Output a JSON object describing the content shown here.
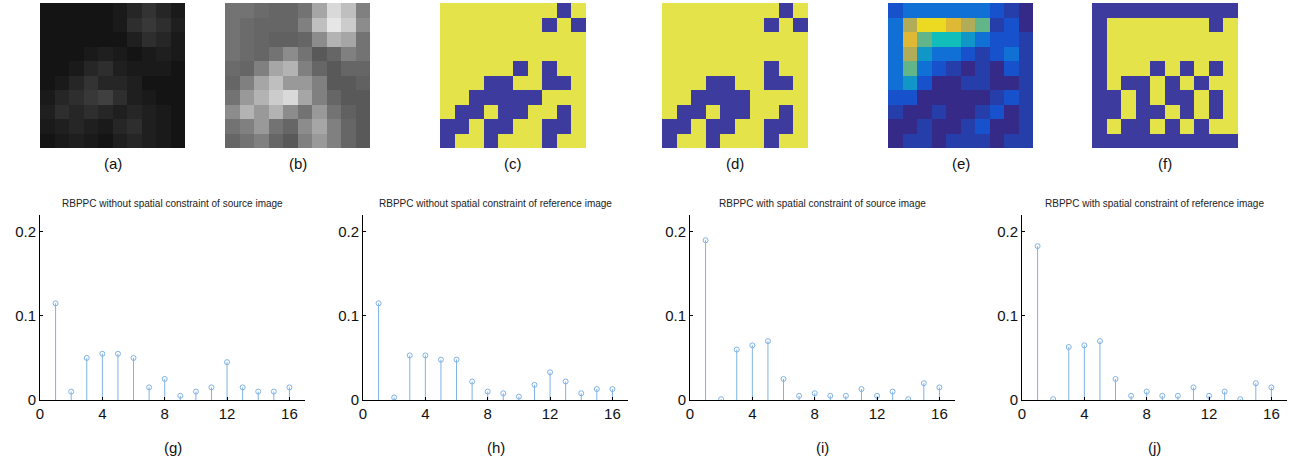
{
  "chart_data": [
    {
      "type": "heatmap",
      "label": "(a)",
      "color": "gray",
      "tick_labels": false,
      "zlim": [
        0,
        1
      ],
      "cells": [
        [
          0.08,
          0.08,
          0.08,
          0.08,
          0.08,
          0.1,
          0.15,
          0.2,
          0.15,
          0.1
        ],
        [
          0.08,
          0.08,
          0.08,
          0.08,
          0.08,
          0.1,
          0.18,
          0.22,
          0.18,
          0.12
        ],
        [
          0.08,
          0.08,
          0.08,
          0.08,
          0.08,
          0.08,
          0.12,
          0.18,
          0.15,
          0.1
        ],
        [
          0.08,
          0.08,
          0.08,
          0.1,
          0.12,
          0.1,
          0.08,
          0.1,
          0.12,
          0.1
        ],
        [
          0.08,
          0.08,
          0.1,
          0.15,
          0.18,
          0.12,
          0.1,
          0.1,
          0.1,
          0.08
        ],
        [
          0.08,
          0.1,
          0.15,
          0.2,
          0.15,
          0.15,
          0.12,
          0.08,
          0.08,
          0.08
        ],
        [
          0.1,
          0.15,
          0.18,
          0.22,
          0.25,
          0.18,
          0.12,
          0.1,
          0.08,
          0.08
        ],
        [
          0.12,
          0.18,
          0.15,
          0.18,
          0.15,
          0.12,
          0.15,
          0.12,
          0.1,
          0.08
        ],
        [
          0.1,
          0.12,
          0.15,
          0.12,
          0.1,
          0.15,
          0.18,
          0.12,
          0.1,
          0.08
        ],
        [
          0.08,
          0.1,
          0.12,
          0.1,
          0.08,
          0.12,
          0.15,
          0.12,
          0.1,
          0.08
        ]
      ]
    },
    {
      "type": "heatmap",
      "label": "(b)",
      "color": "gray",
      "tick_labels": false,
      "zlim": [
        0,
        1
      ],
      "cells": [
        [
          0.45,
          0.45,
          0.42,
          0.4,
          0.4,
          0.45,
          0.65,
          0.85,
          0.75,
          0.5
        ],
        [
          0.45,
          0.42,
          0.4,
          0.4,
          0.4,
          0.5,
          0.75,
          0.9,
          0.8,
          0.55
        ],
        [
          0.45,
          0.42,
          0.4,
          0.38,
          0.38,
          0.4,
          0.55,
          0.7,
          0.65,
          0.45
        ],
        [
          0.45,
          0.42,
          0.4,
          0.45,
          0.55,
          0.45,
          0.35,
          0.4,
          0.5,
          0.45
        ],
        [
          0.42,
          0.4,
          0.5,
          0.65,
          0.7,
          0.5,
          0.4,
          0.35,
          0.4,
          0.4
        ],
        [
          0.4,
          0.5,
          0.65,
          0.75,
          0.6,
          0.6,
          0.5,
          0.35,
          0.35,
          0.38
        ],
        [
          0.45,
          0.6,
          0.7,
          0.8,
          0.85,
          0.65,
          0.5,
          0.4,
          0.35,
          0.35
        ],
        [
          0.55,
          0.7,
          0.6,
          0.7,
          0.55,
          0.45,
          0.6,
          0.45,
          0.38,
          0.35
        ],
        [
          0.45,
          0.5,
          0.6,
          0.45,
          0.4,
          0.55,
          0.65,
          0.5,
          0.4,
          0.35
        ],
        [
          0.4,
          0.45,
          0.5,
          0.4,
          0.35,
          0.5,
          0.6,
          0.5,
          0.4,
          0.35
        ]
      ]
    },
    {
      "type": "heatmap",
      "label": "(c)",
      "color": "yellow-blue",
      "tick_labels": false,
      "zlim": [
        0,
        1
      ],
      "cells": [
        [
          1,
          1,
          1,
          1,
          1,
          1,
          1,
          1,
          0,
          1
        ],
        [
          1,
          1,
          1,
          1,
          1,
          1,
          1,
          0,
          1,
          0
        ],
        [
          1,
          1,
          1,
          1,
          1,
          1,
          1,
          1,
          1,
          1
        ],
        [
          1,
          1,
          1,
          1,
          1,
          1,
          1,
          1,
          1,
          1
        ],
        [
          1,
          1,
          1,
          1,
          1,
          0,
          1,
          0,
          1,
          1
        ],
        [
          1,
          1,
          1,
          0,
          0,
          1,
          1,
          0,
          0,
          1
        ],
        [
          1,
          1,
          0,
          0,
          0,
          0,
          0,
          1,
          1,
          1
        ],
        [
          1,
          0,
          0,
          1,
          0,
          0,
          1,
          1,
          0,
          1
        ],
        [
          0,
          0,
          1,
          0,
          0,
          1,
          1,
          0,
          0,
          1
        ],
        [
          0,
          1,
          1,
          0,
          1,
          1,
          1,
          0,
          1,
          1
        ]
      ]
    },
    {
      "type": "heatmap",
      "label": "(d)",
      "color": "yellow-blue",
      "tick_labels": false,
      "zlim": [
        0,
        1
      ],
      "cells": [
        [
          1,
          1,
          1,
          1,
          1,
          1,
          1,
          1,
          0,
          1
        ],
        [
          1,
          1,
          1,
          1,
          1,
          1,
          1,
          0,
          1,
          0
        ],
        [
          1,
          1,
          1,
          1,
          1,
          1,
          1,
          1,
          1,
          1
        ],
        [
          1,
          1,
          1,
          1,
          1,
          1,
          1,
          1,
          1,
          1
        ],
        [
          1,
          1,
          1,
          1,
          1,
          1,
          1,
          0,
          1,
          1
        ],
        [
          1,
          1,
          1,
          0,
          0,
          1,
          1,
          0,
          0,
          1
        ],
        [
          1,
          1,
          0,
          0,
          0,
          0,
          1,
          1,
          1,
          1
        ],
        [
          1,
          0,
          0,
          1,
          0,
          0,
          1,
          1,
          0,
          1
        ],
        [
          0,
          0,
          1,
          0,
          0,
          1,
          1,
          0,
          0,
          1
        ],
        [
          0,
          1,
          1,
          0,
          1,
          1,
          1,
          0,
          1,
          1
        ]
      ]
    },
    {
      "type": "heatmap",
      "label": "(e)",
      "color": "parula",
      "tick_labels": false,
      "zlim": [
        0,
        1
      ],
      "cells": [
        [
          0.2,
          0.3,
          0.3,
          0.3,
          0.3,
          0.3,
          0.3,
          0.2,
          0.1,
          0.0
        ],
        [
          0.3,
          0.7,
          0.9,
          0.9,
          0.8,
          0.7,
          0.6,
          0.1,
          0.2,
          0.0
        ],
        [
          0.3,
          0.8,
          0.6,
          0.5,
          0.5,
          0.4,
          0.3,
          0.2,
          0.2,
          0.1
        ],
        [
          0.3,
          0.7,
          0.4,
          0.3,
          0.3,
          0.2,
          0.1,
          0.2,
          0.3,
          0.1
        ],
        [
          0.3,
          0.6,
          0.3,
          0.2,
          0.1,
          0.0,
          0.1,
          0.0,
          0.2,
          0.1
        ],
        [
          0.3,
          0.4,
          0.2,
          0.0,
          0.0,
          0.1,
          0.1,
          0.0,
          0.0,
          0.1
        ],
        [
          0.2,
          0.2,
          0.0,
          0.0,
          0.0,
          0.0,
          0.0,
          0.1,
          0.2,
          0.1
        ],
        [
          0.1,
          0.0,
          0.0,
          0.1,
          0.0,
          0.0,
          0.1,
          0.2,
          0.0,
          0.1
        ],
        [
          0.0,
          0.0,
          0.1,
          0.0,
          0.0,
          0.1,
          0.2,
          0.0,
          0.0,
          0.1
        ],
        [
          0.0,
          0.1,
          0.1,
          0.0,
          0.1,
          0.1,
          0.1,
          0.0,
          0.1,
          0.1
        ]
      ]
    },
    {
      "type": "heatmap",
      "label": "(f)",
      "color": "yellow-blue",
      "tick_labels": false,
      "zlim": [
        0,
        1
      ],
      "cells": [
        [
          0,
          0,
          0,
          0,
          0,
          0,
          0,
          0,
          0,
          0
        ],
        [
          0,
          1,
          1,
          1,
          1,
          1,
          1,
          1,
          0,
          1
        ],
        [
          0,
          1,
          1,
          1,
          1,
          1,
          1,
          1,
          1,
          1
        ],
        [
          0,
          1,
          1,
          1,
          1,
          1,
          1,
          1,
          1,
          1
        ],
        [
          0,
          1,
          1,
          1,
          0,
          1,
          0,
          1,
          0,
          1
        ],
        [
          0,
          1,
          0,
          0,
          1,
          0,
          1,
          0,
          1,
          1
        ],
        [
          0,
          0,
          1,
          0,
          1,
          0,
          0,
          1,
          0,
          1
        ],
        [
          0,
          0,
          1,
          0,
          0,
          1,
          0,
          1,
          0,
          1
        ],
        [
          0,
          1,
          0,
          0,
          1,
          0,
          1,
          0,
          1,
          1
        ],
        [
          0,
          0,
          0,
          0,
          0,
          0,
          0,
          0,
          0,
          0
        ]
      ]
    },
    {
      "type": "stem",
      "label": "(g)",
      "title": "RBPPC without spatial constraint of source image",
      "x": [
        1,
        2,
        3,
        4,
        5,
        6,
        7,
        8,
        9,
        10,
        11,
        12,
        13,
        14,
        15,
        16
      ],
      "values": [
        0.115,
        0.01,
        0.05,
        0.055,
        0.055,
        0.05,
        0.015,
        0.025,
        0.005,
        0.01,
        0.015,
        0.045,
        0.015,
        0.01,
        0.01,
        0.015
      ],
      "xlim": [
        0,
        17
      ],
      "xticks": [
        0,
        4,
        8,
        12,
        16
      ],
      "ylim": [
        0,
        0.22
      ],
      "yticks": [
        0,
        0.1,
        0.2
      ],
      "color": "#7fb2e5",
      "marker": "open-circle",
      "grid": false
    },
    {
      "type": "stem",
      "label": "(h)",
      "title": "RBPPC without spatial constraint of reference image",
      "x": [
        1,
        2,
        3,
        4,
        5,
        6,
        7,
        8,
        9,
        10,
        11,
        12,
        13,
        14,
        15,
        16
      ],
      "values": [
        0.115,
        0.003,
        0.053,
        0.053,
        0.048,
        0.048,
        0.022,
        0.01,
        0.008,
        0.004,
        0.018,
        0.033,
        0.022,
        0.008,
        0.013,
        0.013
      ],
      "xlim": [
        0,
        17
      ],
      "xticks": [
        0,
        4,
        8,
        12,
        16
      ],
      "ylim": [
        0,
        0.22
      ],
      "yticks": [
        0,
        0.1,
        0.2
      ],
      "color": "#7fb2e5",
      "marker": "open-circle",
      "grid": false
    },
    {
      "type": "stem",
      "label": "(i)",
      "title": "RBPPC with spatial constraint of source image",
      "x": [
        1,
        2,
        3,
        4,
        5,
        6,
        7,
        8,
        9,
        10,
        11,
        12,
        13,
        14,
        15,
        16
      ],
      "values": [
        0.19,
        0.001,
        0.06,
        0.065,
        0.07,
        0.025,
        0.005,
        0.008,
        0.005,
        0.005,
        0.013,
        0.005,
        0.01,
        0.001,
        0.02,
        0.015
      ],
      "xlim": [
        0,
        17
      ],
      "xticks": [
        0,
        4,
        8,
        12,
        16
      ],
      "ylim": [
        0,
        0.22
      ],
      "yticks": [
        0,
        0.1,
        0.2
      ],
      "color": "#7fb2e5",
      "marker": "open-circle",
      "grid": false
    },
    {
      "type": "stem",
      "label": "(j)",
      "title": "RBPPC with spatial constraint of reference image",
      "x": [
        1,
        2,
        3,
        4,
        5,
        6,
        7,
        8,
        9,
        10,
        11,
        12,
        13,
        14,
        15,
        16
      ],
      "values": [
        0.183,
        0.001,
        0.063,
        0.065,
        0.07,
        0.025,
        0.005,
        0.01,
        0.005,
        0.005,
        0.015,
        0.005,
        0.01,
        0.001,
        0.02,
        0.015
      ],
      "xlim": [
        0,
        17
      ],
      "xticks": [
        0,
        4,
        8,
        12,
        16
      ],
      "ylim": [
        0,
        0.22
      ],
      "yticks": [
        0,
        0.1,
        0.2
      ],
      "color": "#7fb2e5",
      "marker": "open-circle",
      "grid": false
    }
  ]
}
